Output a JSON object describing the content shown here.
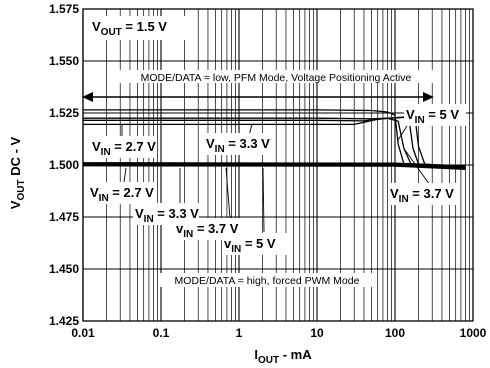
{
  "chart_data": {
    "type": "line",
    "xscale": "log",
    "xlim": [
      0.01,
      1000
    ],
    "ylim": [
      1.425,
      1.575
    ],
    "x_ticks": [
      "0.01",
      "0.1",
      "1",
      "10",
      "100",
      "1000"
    ],
    "y_ticks": [
      "1.425",
      "1.450",
      "1.475",
      "1.500",
      "1.525",
      "1.550",
      "1.575"
    ],
    "xlabel": {
      "main": "I",
      "sub": "OUT",
      "rest": " - mA"
    },
    "ylabel": {
      "main": "V",
      "sub": "OUT",
      "rest": " DC - V"
    },
    "grid": true,
    "title_annotation": {
      "main": "V",
      "sub": "OUT",
      "rest": " = 1.5 V"
    },
    "mode_low_text": "MODE/DATA = low, PFM Mode, Voltage Positioning Active",
    "mode_high_text": "MODE/DATA = high, forced PWM Mode",
    "series": [
      {
        "group": "pfm",
        "vin": "2.7",
        "x": [
          0.01,
          10,
          50,
          80,
          100,
          110,
          130,
          800
        ],
        "y": [
          1.5265,
          1.5265,
          1.5262,
          1.5255,
          1.524,
          1.51,
          1.5005,
          1.4985
        ]
      },
      {
        "group": "pfm",
        "vin": "3.3",
        "x": [
          0.01,
          10,
          50,
          80,
          110,
          130,
          160,
          800
        ],
        "y": [
          1.5225,
          1.5225,
          1.5222,
          1.5225,
          1.521,
          1.508,
          1.5005,
          1.4985
        ]
      },
      {
        "group": "pfm",
        "vin": "3.7",
        "x": [
          0.01,
          10,
          40,
          80,
          150,
          170,
          200,
          800
        ],
        "y": [
          1.5215,
          1.5215,
          1.5212,
          1.5225,
          1.523,
          1.508,
          1.5005,
          1.4985
        ]
      },
      {
        "group": "pfm",
        "vin": "5",
        "x": [
          0.01,
          10,
          30,
          60,
          180,
          200,
          240,
          800
        ],
        "y": [
          1.5195,
          1.5195,
          1.5195,
          1.522,
          1.5235,
          1.509,
          1.5005,
          1.4985
        ]
      },
      {
        "group": "pwm",
        "vin": "2.7",
        "x": [
          0.01,
          100,
          800
        ],
        "y": [
          1.501,
          1.5008,
          1.4995
        ]
      },
      {
        "group": "pwm",
        "vin": "3.3",
        "x": [
          0.01,
          100,
          800
        ],
        "y": [
          1.5005,
          1.5003,
          1.499
        ]
      },
      {
        "group": "pwm",
        "vin": "3.7",
        "x": [
          0.01,
          100,
          800
        ],
        "y": [
          1.5,
          1.4998,
          1.4985
        ]
      },
      {
        "group": "pwm",
        "vin": "5",
        "x": [
          0.01,
          100,
          800
        ],
        "y": [
          1.4997,
          1.4995,
          1.498
        ]
      }
    ],
    "vin_labels": [
      {
        "main": "V",
        "sub": "IN",
        "rest": " = 2.7 V"
      },
      {
        "main": "V",
        "sub": "IN",
        "rest": " = 3.3 V"
      },
      {
        "main": "V",
        "sub": "IN",
        "rest": " = 5 V"
      },
      {
        "main": "V",
        "sub": "IN",
        "rest": " = 3.7 V"
      },
      {
        "main": "V",
        "sub": "IN",
        "rest": " = 2.7 V"
      },
      {
        "main": "V",
        "sub": "IN",
        "rest": " = 3.3 V"
      },
      {
        "main": "v",
        "sub": "IN",
        "rest": " = 3.7 V"
      },
      {
        "main": "v",
        "sub": "IN",
        "rest": " = 5 V"
      }
    ]
  }
}
